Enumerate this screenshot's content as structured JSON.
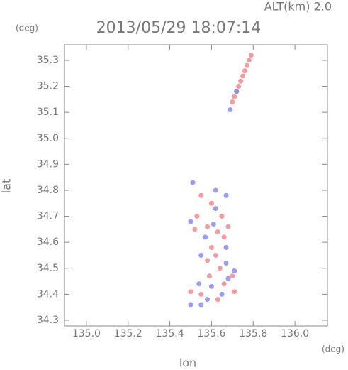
{
  "chart_data": {
    "type": "scatter",
    "title": "2013/05/29 18:07:14",
    "annotation": "ALT(km) 2.0",
    "y_unit": "(deg)",
    "x_unit": "(deg)",
    "x_label": "lon",
    "y_label": "lat",
    "xlim": [
      134.895,
      136.156
    ],
    "ylim": [
      34.278,
      35.36
    ],
    "xticks": [
      {
        "value": 135,
        "label": "135.0"
      },
      135.2,
      135.4,
      135.6,
      135.8,
      {
        "value": 136,
        "label": "136.0"
      }
    ],
    "yticks": [
      34.3,
      34.4,
      34.5,
      34.6,
      34.7,
      34.8,
      34.9,
      {
        "value": 35,
        "label": "35.0"
      },
      35.1,
      35.2,
      35.3
    ],
    "series": [
      {
        "color": "#f08a90",
        "x": [
          135.79,
          135.78,
          135.77,
          135.76,
          135.75,
          135.74,
          135.73,
          135.72,
          135.71,
          135.7,
          135.55,
          135.6,
          135.65,
          135.52,
          135.58,
          135.63,
          135.66,
          135.6,
          135.62,
          135.58,
          135.64,
          135.59,
          135.7,
          135.66,
          135.71,
          135.5,
          135.55,
          135.63,
          135.53,
          135.68
        ],
        "y": [
          35.32,
          35.3,
          35.28,
          35.26,
          35.24,
          35.22,
          35.2,
          35.18,
          35.16,
          35.14,
          34.78,
          34.75,
          34.7,
          34.65,
          34.66,
          34.64,
          34.62,
          34.58,
          34.55,
          34.53,
          34.5,
          34.47,
          34.47,
          34.44,
          34.41,
          34.41,
          34.4,
          34.38,
          34.7,
          34.66
        ]
      },
      {
        "color": "#8a8af0",
        "x": [
          135.69,
          135.72,
          135.51,
          135.62,
          135.67,
          135.5,
          135.57,
          135.61,
          135.67,
          135.55,
          135.67,
          135.71,
          135.68,
          135.54,
          135.6,
          135.58,
          135.5,
          135.55,
          135.65,
          135.62
        ],
        "y": [
          35.11,
          35.18,
          34.83,
          34.8,
          34.78,
          34.68,
          34.62,
          34.67,
          34.58,
          34.55,
          34.52,
          34.49,
          34.46,
          34.44,
          34.43,
          34.38,
          34.36,
          34.36,
          34.4,
          34.73
        ]
      }
    ]
  }
}
